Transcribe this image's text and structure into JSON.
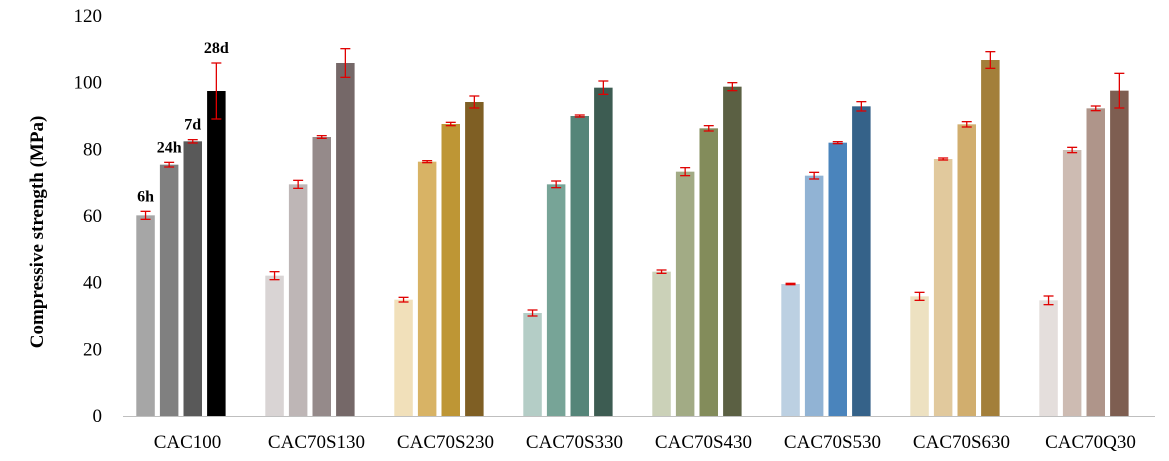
{
  "chart_data": {
    "type": "bar",
    "title": "",
    "xlabel": "",
    "ylabel": "Compressive strength (MPa)",
    "ylim": [
      0,
      120
    ],
    "yticks": [
      0,
      20,
      40,
      60,
      80,
      100,
      120
    ],
    "grid": false,
    "legend": "none",
    "error_bar_color": "#e00000",
    "categories": [
      "CAC100",
      "CAC70S130",
      "CAC70S230",
      "CAC70S330",
      "CAC70S430",
      "CAC70S530",
      "CAC70S630",
      "CAC70Q30"
    ],
    "series": [
      {
        "name": "6h",
        "values": [
          60.2,
          42.1,
          34.9,
          30.9,
          43.3,
          39.6,
          35.9,
          34.7
        ],
        "errors": [
          1.2,
          1.2,
          0.7,
          0.9,
          0.5,
          0.2,
          1.2,
          1.3
        ]
      },
      {
        "name": "24h",
        "values": [
          75.4,
          69.5,
          76.3,
          69.5,
          73.3,
          72.1,
          77.1,
          79.8
        ],
        "errors": [
          0.7,
          1.2,
          0.3,
          1.0,
          1.2,
          1.0,
          0.3,
          0.8
        ]
      },
      {
        "name": "7d",
        "values": [
          82.4,
          83.7,
          87.6,
          90.0,
          86.3,
          82.0,
          87.5,
          92.3
        ],
        "errors": [
          0.5,
          0.4,
          0.5,
          0.3,
          0.8,
          0.3,
          0.8,
          0.7
        ]
      },
      {
        "name": "28d",
        "values": [
          97.5,
          105.9,
          94.2,
          98.5,
          98.8,
          92.9,
          106.8,
          97.6
        ],
        "errors": [
          8.4,
          4.3,
          1.8,
          2.0,
          1.2,
          1.4,
          2.5,
          5.2
        ]
      }
    ],
    "colors": [
      [
        "#a6a6a6",
        "#808080",
        "#595959",
        "#000000"
      ],
      [
        "#d9d4d4",
        "#beb6b6",
        "#958a8a",
        "#756868"
      ],
      [
        "#f1e0ba",
        "#d8b365",
        "#be9635",
        "#7f5f24"
      ],
      [
        "#b4cdc6",
        "#77a497",
        "#558579",
        "#3d5c52"
      ],
      [
        "#cbd1b8",
        "#a2ab85",
        "#838c5b",
        "#5b6043"
      ],
      [
        "#bcd0e2",
        "#91b3d4",
        "#4a84bc",
        "#356289"
      ],
      [
        "#ede1c1",
        "#e1c99d",
        "#d1ae6e",
        "#a37f3a"
      ],
      [
        "#e4dedc",
        "#cdbbb2",
        "#af958a",
        "#7e5e51"
      ]
    ],
    "annotations": [
      {
        "text": "6h",
        "category": "CAC100",
        "series": "6h"
      },
      {
        "text": "24h",
        "category": "CAC100",
        "series": "24h"
      },
      {
        "text": "7d",
        "category": "CAC100",
        "series": "7d"
      },
      {
        "text": "28d",
        "category": "CAC100",
        "series": "28d"
      }
    ]
  }
}
